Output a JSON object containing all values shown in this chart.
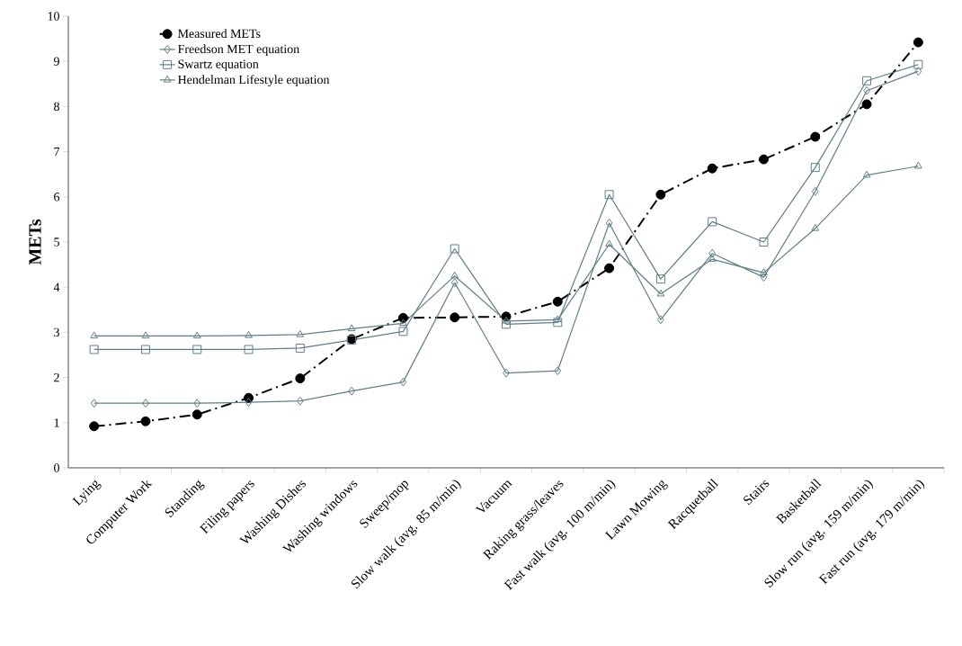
{
  "chart_data": {
    "type": "line",
    "ylabel": "METs",
    "categories": [
      "Lying",
      "Computer Work",
      "Standing",
      "Filing papers",
      "Washing Dishes",
      "Washing windows",
      "Sweep/mop",
      "Slow walk (avg. 85 m/min)",
      "Vacuum",
      "Raking grass/leaves",
      "Fast walk (avg. 100 m/min)",
      "Lawn Mowing",
      "Racquetball",
      "Stairs",
      "Basketball",
      "Slow run (avg. 159 m/min)",
      "Fast run (avg. 179 m/min)"
    ],
    "series": [
      {
        "name": "Measured METs",
        "color": "#000000",
        "marker": "circle",
        "line_style": "dashed",
        "values": [
          0.92,
          1.03,
          1.18,
          1.55,
          1.98,
          2.85,
          3.32,
          3.33,
          3.35,
          3.68,
          4.42,
          6.05,
          6.63,
          6.83,
          7.33,
          8.05,
          9.42
        ]
      },
      {
        "name": "Freedson MET equation",
        "color": "#5f7f86",
        "marker": "diamond",
        "line_style": "solid",
        "values": [
          1.43,
          1.43,
          1.43,
          1.45,
          1.48,
          1.7,
          1.9,
          4.1,
          2.1,
          2.15,
          5.42,
          3.28,
          4.75,
          4.22,
          6.12,
          8.35,
          8.78
        ]
      },
      {
        "name": "Swartz equation",
        "color": "#5f7f86",
        "marker": "square",
        "line_style": "solid",
        "values": [
          2.62,
          2.62,
          2.62,
          2.62,
          2.65,
          2.83,
          3.02,
          4.85,
          3.18,
          3.22,
          6.05,
          4.18,
          5.45,
          5.0,
          6.65,
          8.57,
          8.93
        ]
      },
      {
        "name": "Hendelman Lifestyle equation",
        "color": "#5f7f86",
        "marker": "triangle",
        "line_style": "solid",
        "values": [
          2.92,
          2.92,
          2.92,
          2.93,
          2.95,
          3.08,
          3.2,
          4.25,
          3.25,
          3.28,
          4.95,
          3.85,
          4.62,
          4.32,
          5.3,
          6.48,
          6.68
        ]
      }
    ],
    "ylim": [
      0,
      10
    ],
    "yticks": [
      0,
      1,
      2,
      3,
      4,
      5,
      6,
      7,
      8,
      9,
      10
    ],
    "grid": false,
    "legend": "top left"
  }
}
